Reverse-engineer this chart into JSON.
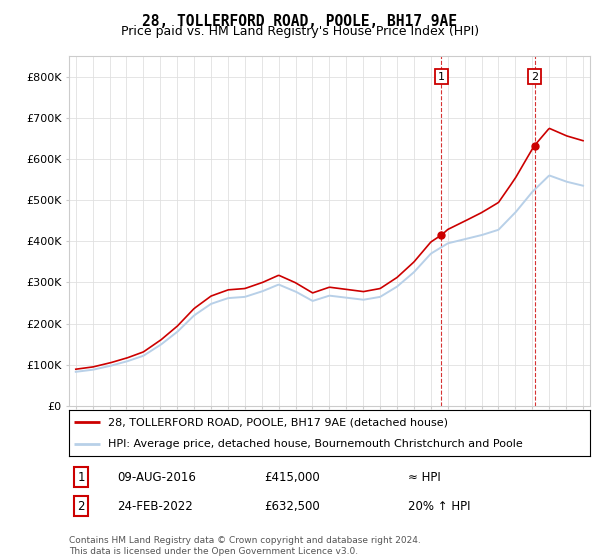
{
  "title": "28, TOLLERFORD ROAD, POOLE, BH17 9AE",
  "subtitle": "Price paid vs. HM Land Registry's House Price Index (HPI)",
  "ylim": [
    0,
    850000
  ],
  "yticks": [
    0,
    100000,
    200000,
    300000,
    400000,
    500000,
    600000,
    700000,
    800000
  ],
  "ytick_labels": [
    "£0",
    "£100K",
    "£200K",
    "£300K",
    "£400K",
    "£500K",
    "£600K",
    "£700K",
    "£800K"
  ],
  "hpi_color": "#b8d0e8",
  "price_color": "#cc0000",
  "sale1_x": 2016.62,
  "sale1_price": 415000,
  "sale2_x": 2022.13,
  "sale2_price": 632500,
  "legend_label1": "28, TOLLERFORD ROAD, POOLE, BH17 9AE (detached house)",
  "legend_label2": "HPI: Average price, detached house, Bournemouth Christchurch and Poole",
  "annotation1_label": "1",
  "annotation1_date_str": "09-AUG-2016",
  "annotation1_price_str": "£415,000",
  "annotation1_rel": "≈ HPI",
  "annotation2_label": "2",
  "annotation2_date_str": "24-FEB-2022",
  "annotation2_price_str": "£632,500",
  "annotation2_rel": "20% ↑ HPI",
  "footer": "Contains HM Land Registry data © Crown copyright and database right 2024.\nThis data is licensed under the Open Government Licence v3.0.",
  "background_color": "#ffffff",
  "grid_color": "#e0e0e0",
  "hpi_knots_x": [
    1995,
    1996,
    1997,
    1998,
    1999,
    2000,
    2001,
    2002,
    2003,
    2004,
    2005,
    2006,
    2007,
    2008,
    2009,
    2010,
    2011,
    2012,
    2013,
    2014,
    2015,
    2016,
    2017,
    2018,
    2019,
    2020,
    2021,
    2022,
    2023,
    2024,
    2025
  ],
  "hpi_knots_y": [
    83000,
    88000,
    97000,
    108000,
    122000,
    148000,
    180000,
    220000,
    248000,
    262000,
    265000,
    278000,
    295000,
    278000,
    255000,
    268000,
    263000,
    258000,
    265000,
    290000,
    325000,
    370000,
    395000,
    405000,
    415000,
    428000,
    470000,
    520000,
    560000,
    545000,
    535000
  ]
}
